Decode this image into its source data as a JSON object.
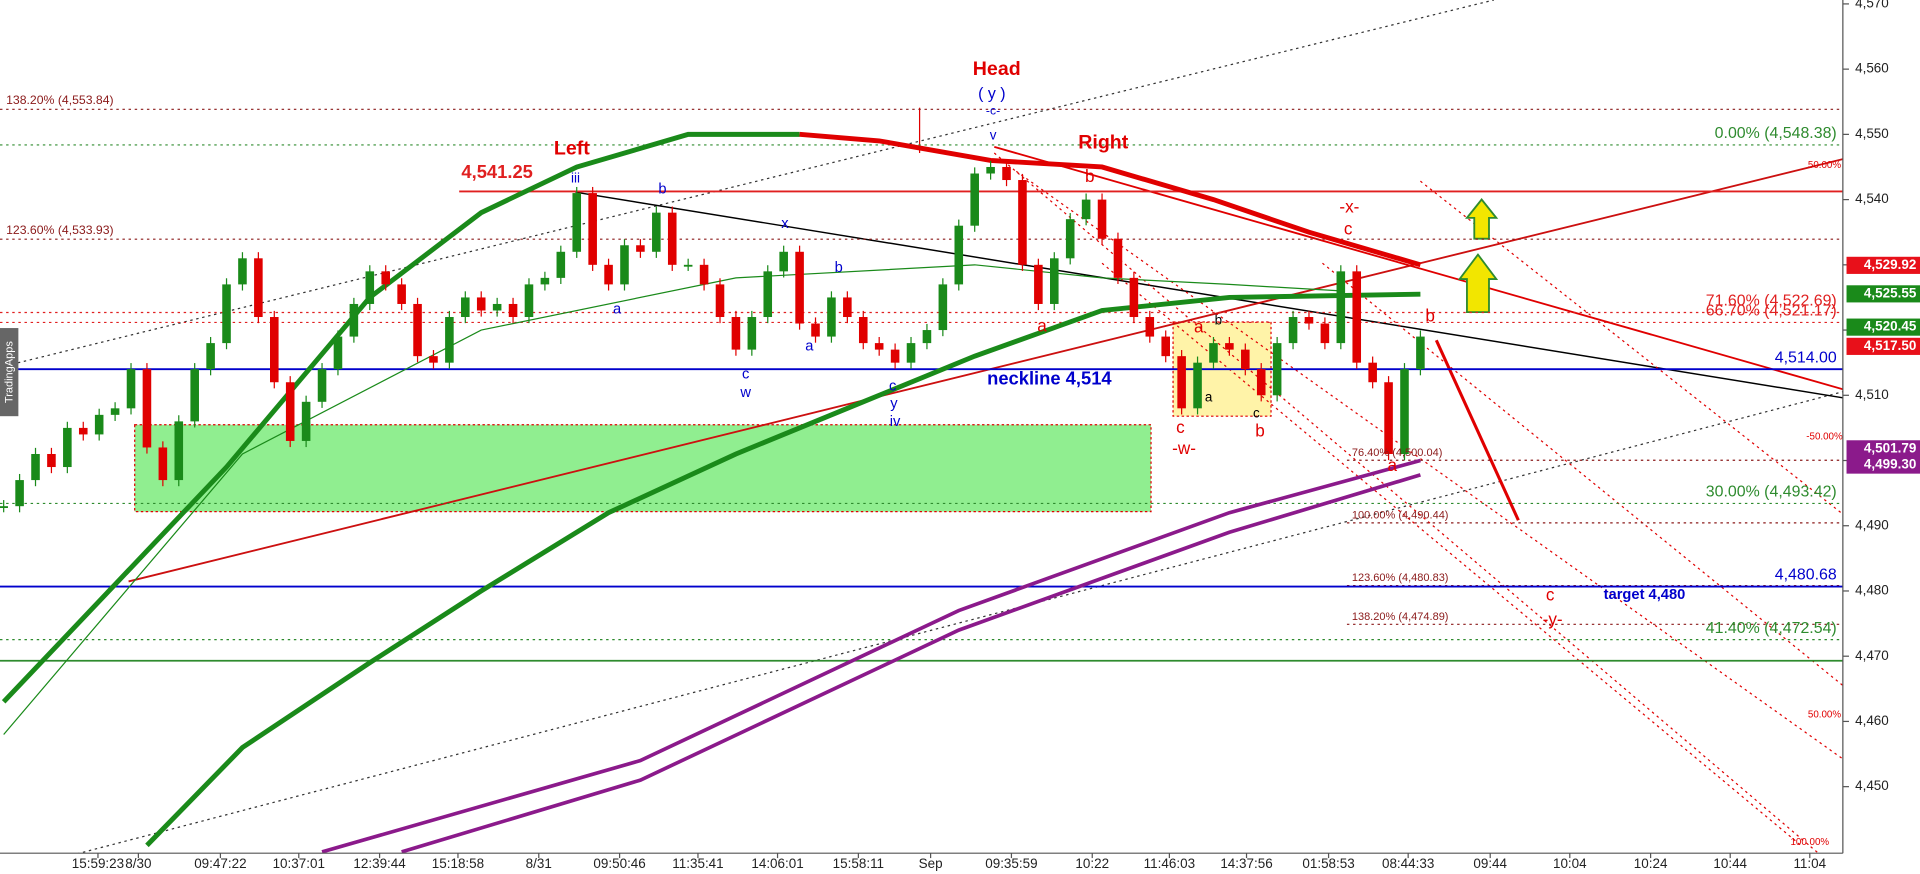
{
  "chart_data": {
    "type": "candlestick",
    "watermark": "TradingApps",
    "ylim": [
      4439.8,
      4570.6
    ],
    "yticks": [
      {
        "value": 4570,
        "label": "4,570"
      },
      {
        "value": 4560,
        "label": "4,560"
      },
      {
        "value": 4550,
        "label": "4,550"
      },
      {
        "value": 4540,
        "label": "4,540"
      },
      {
        "value": 4530,
        "label": "4,530"
      },
      {
        "value": 4520,
        "label": "4,520"
      },
      {
        "value": 4510,
        "label": "4,510"
      },
      {
        "value": 4500,
        "label": "4,500"
      },
      {
        "value": 4490,
        "label": "4,490"
      },
      {
        "value": 4480,
        "label": "4,480"
      },
      {
        "value": 4470,
        "label": "4,470"
      },
      {
        "value": 4460,
        "label": "4,460"
      },
      {
        "value": 4450,
        "label": "4,450"
      }
    ],
    "x_labels": [
      "15:59:23",
      "8/30",
      "09:47:22",
      "10:37:01",
      "12:39:44",
      "15:18:58",
      "8/31",
      "09:50:46",
      "11:35:41",
      "14:06:01",
      "15:58:11",
      "Sep",
      "09:35:59",
      "10:22",
      "11:46:03",
      "14:37:56",
      "01:58:53",
      "08:44:33",
      "09:44",
      "10:04",
      "10:24",
      "10:44",
      "11:04"
    ],
    "colors": {
      "up": "#1a8a1a",
      "down": "#e00000"
    },
    "candles": [
      4493,
      4497,
      4501,
      4499,
      4505,
      4504,
      4507,
      4508,
      4514,
      4502,
      4497,
      4506,
      4514,
      4518,
      4527,
      4531,
      4522,
      4512,
      4503,
      4509,
      4514,
      4519,
      4524,
      4529,
      4527,
      4524,
      4516,
      4515,
      4522,
      4525,
      4523,
      4524,
      4522,
      4527,
      4528,
      4532,
      4541,
      4530,
      4527,
      4533,
      4532,
      4538,
      4530,
      4530,
      4527,
      4522,
      4517,
      4522,
      4529,
      4532,
      4521,
      4519,
      4525,
      4522,
      4518,
      4517,
      4515,
      4518,
      4520,
      4527,
      4536,
      4544,
      4545,
      4543,
      4530,
      4524,
      4531,
      4537,
      4540,
      4534,
      4528,
      4522,
      4519,
      4516,
      4508,
      4515,
      4518,
      4517,
      4514,
      4510,
      4518,
      4522,
      4521,
      4518,
      4529,
      4515,
      4512,
      4501,
      4514,
      4519
    ],
    "overlays": [
      {
        "color": "#1a8a1a",
        "width": 4,
        "x": [
          0,
          7,
          14,
          23,
          30,
          36,
          43,
          50
        ],
        "values": [
          4463,
          4481,
          4499,
          4525,
          4538,
          4545,
          4550,
          4550
        ]
      },
      {
        "color": "#e00000",
        "width": 4,
        "x": [
          50,
          55,
          62,
          69,
          76,
          82,
          89
        ],
        "values": [
          4550,
          4549,
          4546,
          4545,
          4540,
          4535,
          4530
        ]
      },
      {
        "color": "#1a8a1a",
        "width": 4,
        "x": [
          9,
          15,
          23,
          30,
          38,
          46,
          54,
          61,
          69,
          77,
          89
        ],
        "values": [
          4441,
          4456,
          4469,
          4480,
          4492,
          4501,
          4509,
          4516,
          4523,
          4525,
          4525.5
        ]
      },
      {
        "color": "#1a8a1a",
        "width": 1,
        "x": [
          0,
          15,
          30,
          46,
          61,
          69,
          77,
          84
        ],
        "values": [
          4458,
          4501,
          4520,
          4528,
          4530,
          4528,
          4527,
          4526
        ]
      },
      {
        "color": "#8b1a8b",
        "width": 3,
        "x": [
          20,
          40,
          60,
          77,
          89
        ],
        "values": [
          4440,
          4454,
          4477,
          4492,
          4500
        ]
      },
      {
        "color": "#8b1a8b",
        "width": 3,
        "x": [
          25,
          40,
          60,
          77,
          89
        ],
        "values": [
          4440,
          4451,
          4474,
          4489,
          4497.8
        ]
      }
    ],
    "levels": [
      {
        "value": 4553.84,
        "label": "138.20% (4,553.84)",
        "color": "#8b1a1a",
        "side": "left",
        "style": "dotted"
      },
      {
        "value": 4533.93,
        "label": "123.60% (4,533.93)",
        "color": "#8b1a1a",
        "side": "left",
        "style": "dotted"
      },
      {
        "value": 4548.38,
        "label": "0.00% (4,548.38)",
        "color": "#2e8b2e",
        "side": "right",
        "style": "dotted"
      },
      {
        "value": 4493.42,
        "label": "30.00% (4,493.42)",
        "color": "#2e8b2e",
        "side": "right",
        "style": "dotted"
      },
      {
        "value": 4472.54,
        "label": "41.40% (4,472.54)",
        "color": "#2e8b2e",
        "side": "right",
        "style": "dotted"
      },
      {
        "value": 4522.69,
        "label": "71.60% (4,522.69)",
        "color": "#e02020",
        "side": "right",
        "style": "dotted"
      },
      {
        "value": 4521.17,
        "label": "66.70% (4,521.17)",
        "color": "#e02020",
        "side": "right",
        "style": "dotted"
      },
      {
        "value": 4500.04,
        "label": "76.40% (4,500.04)",
        "color": "#8b1a1a",
        "side": "mid",
        "style": "dotted"
      },
      {
        "value": 4490.44,
        "label": "100.00% (4,490.44)",
        "color": "#8b1a1a",
        "side": "mid",
        "style": "dotted"
      },
      {
        "value": 4480.83,
        "label": "123.60% (4,480.83)",
        "color": "#8b1a1a",
        "side": "mid",
        "style": "dotted"
      },
      {
        "value": 4474.89,
        "label": "138.20% (4,474.89)",
        "color": "#8b1a1a",
        "side": "mid",
        "style": "dotted"
      },
      {
        "value": 4514,
        "label": "4,514.00",
        "color": "#0000cc",
        "side": "right",
        "style": "solid"
      },
      {
        "value": 4480.68,
        "label": "4,480.68",
        "color": "#0000cc",
        "side": "right",
        "style": "solid"
      },
      {
        "value": 4541.25,
        "label": "4,541.25",
        "color": "#e02020",
        "side": "start",
        "style": "solid"
      },
      {
        "value": 4469.3,
        "color": "#2e8b2e",
        "side": "right",
        "style": "solid"
      }
    ],
    "price_tags": [
      {
        "value": 4529.92,
        "label": "4,529.92",
        "color": "#e8101a"
      },
      {
        "value": 4525.55,
        "label": "4,525.55",
        "color": "#1a8a1a"
      },
      {
        "value": 4520.45,
        "label": "4,520.45",
        "color": "#1a8a1a"
      },
      {
        "value": 4517.5,
        "label": "4,517.50",
        "color": "#e8101a"
      },
      {
        "value": 4501.79,
        "label": "4,501.79",
        "color": "#8b1a8b"
      },
      {
        "value": 4499.3,
        "label": "4,499.30",
        "color": "#8b1a8b"
      }
    ],
    "annotations": [
      {
        "text": "Head",
        "color": "#e00000"
      },
      {
        "text": "( y )",
        "color": "#0000cc"
      },
      {
        "text": "-c-",
        "color": "#0000cc"
      },
      {
        "text": "v",
        "color": "#0000cc"
      },
      {
        "text": "Left",
        "color": "#e00000"
      },
      {
        "text": "Right",
        "color": "#e00000"
      },
      {
        "text": "iii",
        "color": "#0000cc"
      },
      {
        "text": "b",
        "color": "#0000cc"
      },
      {
        "text": "x",
        "color": "#0000cc"
      },
      {
        "text": "b",
        "color": "#0000cc"
      },
      {
        "text": "a",
        "color": "#0000cc"
      },
      {
        "text": "a",
        "color": "#0000cc"
      },
      {
        "text": "c",
        "color": "#0000cc"
      },
      {
        "text": "w",
        "color": "#0000cc"
      },
      {
        "text": "c",
        "color": "#0000cc"
      },
      {
        "text": "y",
        "color": "#0000cc"
      },
      {
        "text": "iv",
        "color": "#0000cc"
      },
      {
        "text": "b",
        "color": "#e00000"
      },
      {
        "text": "a",
        "color": "#e00000"
      },
      {
        "text": "-x-",
        "color": "#e00000"
      },
      {
        "text": "c",
        "color": "#e00000"
      },
      {
        "text": "a",
        "color": "#e00000"
      },
      {
        "text": "b",
        "color": "#000000"
      },
      {
        "text": "a",
        "color": "#000000"
      },
      {
        "text": "c",
        "color": "#000000"
      },
      {
        "text": "c",
        "color": "#e00000"
      },
      {
        "text": "b",
        "color": "#e00000"
      },
      {
        "text": "-w-",
        "color": "#e00000"
      },
      {
        "text": "b",
        "color": "#e00000"
      },
      {
        "text": "a",
        "color": "#e00000"
      },
      {
        "text": "c",
        "color": "#e00000"
      },
      {
        "text": "-y-",
        "color": "#e00000"
      },
      {
        "text": "neckline 4,514",
        "color": "#0000cc"
      },
      {
        "text": "target 4,480",
        "color": "#0000cc"
      },
      {
        "text": "50.00%",
        "color": "#e00000"
      },
      {
        "text": "-50.00%",
        "color": "#e00000"
      },
      {
        "text": "50.00%",
        "color": "#e00000"
      },
      {
        "text": "100.00%",
        "color": "#e00000"
      }
    ]
  }
}
